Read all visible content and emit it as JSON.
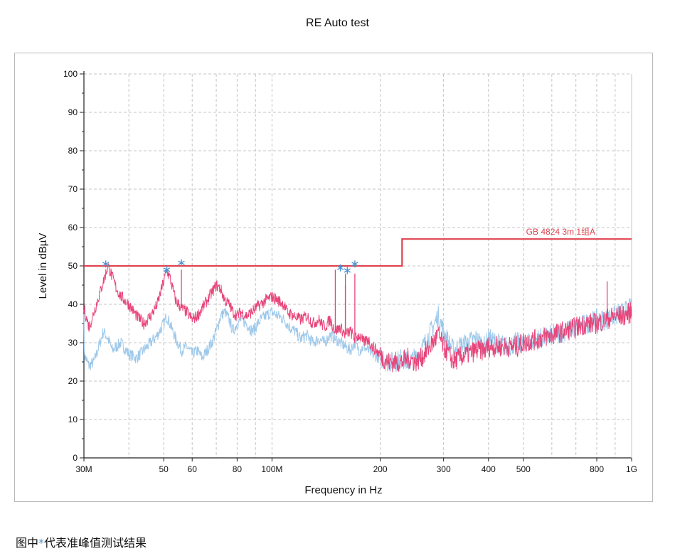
{
  "chart_data": {
    "type": "line",
    "title": "RE Auto test",
    "xlabel": "Frequency in Hz",
    "ylabel": "Level in dBµV",
    "x_scale": "log",
    "xlim": [
      30000000,
      1000000000
    ],
    "ylim": [
      0,
      100
    ],
    "grid": true,
    "x_ticks": [
      {
        "value": 30000000,
        "label": "30M"
      },
      {
        "value": 50000000,
        "label": "50"
      },
      {
        "value": 60000000,
        "label": "60"
      },
      {
        "value": 80000000,
        "label": "80"
      },
      {
        "value": 100000000,
        "label": "100M"
      },
      {
        "value": 200000000,
        "label": "200"
      },
      {
        "value": 300000000,
        "label": "300"
      },
      {
        "value": 400000000,
        "label": "400"
      },
      {
        "value": 500000000,
        "label": "500"
      },
      {
        "value": 800000000,
        "label": "800"
      },
      {
        "value": 1000000000,
        "label": "1G"
      }
    ],
    "y_ticks": [
      0,
      10,
      20,
      30,
      40,
      50,
      60,
      70,
      80,
      90,
      100
    ],
    "limit_line": {
      "label": "GB 4824 3m 1组A",
      "color": "#e0434f",
      "points": [
        [
          30000000,
          50
        ],
        [
          230000000,
          50
        ],
        [
          230000000,
          57
        ],
        [
          1000000000,
          57
        ]
      ]
    },
    "series": [
      {
        "color": "#9dc8ea",
        "points": [
          [
            30,
            27
          ],
          [
            31,
            24
          ],
          [
            32,
            25
          ],
          [
            33,
            29
          ],
          [
            34,
            33
          ],
          [
            35,
            31
          ],
          [
            36,
            28
          ],
          [
            38,
            30
          ],
          [
            40,
            27
          ],
          [
            42,
            26
          ],
          [
            44,
            28
          ],
          [
            46,
            30
          ],
          [
            48,
            32
          ],
          [
            50,
            35
          ],
          [
            51,
            37
          ],
          [
            52,
            35
          ],
          [
            54,
            31
          ],
          [
            56,
            28
          ],
          [
            58,
            29
          ],
          [
            60,
            27
          ],
          [
            62,
            28
          ],
          [
            64,
            26
          ],
          [
            66,
            28
          ],
          [
            68,
            30
          ],
          [
            70,
            33
          ],
          [
            72,
            37
          ],
          [
            74,
            38
          ],
          [
            76,
            36
          ],
          [
            78,
            33
          ],
          [
            80,
            35
          ],
          [
            82,
            36
          ],
          [
            85,
            35
          ],
          [
            88,
            33
          ],
          [
            90,
            34
          ],
          [
            93,
            36
          ],
          [
            96,
            37
          ],
          [
            100,
            38
          ],
          [
            104,
            37
          ],
          [
            108,
            36
          ],
          [
            112,
            34
          ],
          [
            116,
            33
          ],
          [
            120,
            31
          ],
          [
            125,
            32
          ],
          [
            130,
            30
          ],
          [
            135,
            31
          ],
          [
            140,
            30
          ],
          [
            145,
            32
          ],
          [
            150,
            31
          ],
          [
            155,
            30
          ],
          [
            160,
            29
          ],
          [
            165,
            28
          ],
          [
            170,
            30
          ],
          [
            175,
            28
          ],
          [
            180,
            29
          ],
          [
            185,
            28
          ],
          [
            190,
            27
          ],
          [
            200,
            26
          ],
          [
            210,
            25
          ],
          [
            220,
            25
          ],
          [
            230,
            26
          ],
          [
            240,
            25
          ],
          [
            250,
            26
          ],
          [
            260,
            28
          ],
          [
            270,
            31
          ],
          [
            280,
            34
          ],
          [
            290,
            37
          ],
          [
            300,
            33
          ],
          [
            310,
            30
          ],
          [
            320,
            28
          ],
          [
            330,
            29
          ],
          [
            350,
            30
          ],
          [
            370,
            31
          ],
          [
            390,
            29
          ],
          [
            400,
            31
          ],
          [
            420,
            30
          ],
          [
            450,
            29
          ],
          [
            480,
            30
          ],
          [
            500,
            30
          ],
          [
            550,
            31
          ],
          [
            600,
            32
          ],
          [
            650,
            33
          ],
          [
            700,
            34
          ],
          [
            750,
            35
          ],
          [
            800,
            36
          ],
          [
            850,
            36
          ],
          [
            900,
            37
          ],
          [
            950,
            38
          ],
          [
            1000,
            39
          ]
        ]
      },
      {
        "color": "#e8457a",
        "points": [
          [
            30,
            39
          ],
          [
            31,
            34
          ],
          [
            32,
            38
          ],
          [
            33,
            42
          ],
          [
            34,
            46
          ],
          [
            35,
            50
          ],
          [
            36,
            47
          ],
          [
            37,
            44
          ],
          [
            38,
            42
          ],
          [
            39,
            41
          ],
          [
            40,
            40
          ],
          [
            42,
            37
          ],
          [
            44,
            35
          ],
          [
            45,
            36
          ],
          [
            46,
            37
          ],
          [
            48,
            40
          ],
          [
            50,
            46
          ],
          [
            51,
            49
          ],
          [
            52,
            47
          ],
          [
            53,
            44
          ],
          [
            54,
            41
          ],
          [
            56,
            39
          ],
          [
            58,
            38
          ],
          [
            60,
            36
          ],
          [
            62,
            37
          ],
          [
            64,
            39
          ],
          [
            66,
            41
          ],
          [
            68,
            43
          ],
          [
            70,
            45
          ],
          [
            72,
            44
          ],
          [
            74,
            41
          ],
          [
            76,
            40
          ],
          [
            78,
            38
          ],
          [
            80,
            37
          ],
          [
            82,
            38
          ],
          [
            85,
            37
          ],
          [
            88,
            38
          ],
          [
            90,
            39
          ],
          [
            93,
            40
          ],
          [
            96,
            41
          ],
          [
            100,
            42
          ],
          [
            104,
            41
          ],
          [
            108,
            40
          ],
          [
            110,
            38
          ],
          [
            115,
            37
          ],
          [
            120,
            36
          ],
          [
            125,
            37
          ],
          [
            130,
            35
          ],
          [
            135,
            36
          ],
          [
            140,
            34
          ],
          [
            145,
            36
          ],
          [
            150,
            33
          ],
          [
            155,
            34
          ],
          [
            160,
            32
          ],
          [
            165,
            33
          ],
          [
            170,
            31
          ],
          [
            175,
            32
          ],
          [
            180,
            30
          ],
          [
            185,
            31
          ],
          [
            190,
            29
          ],
          [
            200,
            27
          ],
          [
            210,
            25
          ],
          [
            220,
            25
          ],
          [
            230,
            25
          ],
          [
            240,
            26
          ],
          [
            250,
            25
          ],
          [
            260,
            26
          ],
          [
            270,
            28
          ],
          [
            280,
            30
          ],
          [
            290,
            32
          ],
          [
            300,
            29
          ],
          [
            310,
            27
          ],
          [
            320,
            25
          ],
          [
            330,
            26
          ],
          [
            350,
            27
          ],
          [
            370,
            28
          ],
          [
            390,
            28
          ],
          [
            400,
            29
          ],
          [
            420,
            29
          ],
          [
            450,
            29
          ],
          [
            480,
            29
          ],
          [
            500,
            30
          ],
          [
            550,
            31
          ],
          [
            600,
            32
          ],
          [
            650,
            33
          ],
          [
            700,
            34
          ],
          [
            750,
            35
          ],
          [
            800,
            35
          ],
          [
            850,
            36
          ],
          [
            900,
            37
          ],
          [
            950,
            37
          ],
          [
            1000,
            38
          ]
        ]
      }
    ],
    "spikes": [
      {
        "x": 56,
        "y": 49
      },
      {
        "x": 150,
        "y": 49
      },
      {
        "x": 160,
        "y": 45
      },
      {
        "x": 170,
        "y": 48
      },
      {
        "x": 160,
        "y": 48
      },
      {
        "x": 855,
        "y": 46
      }
    ],
    "peak_markers": {
      "color": "#4f93d0",
      "points": [
        [
          34.5,
          50.5
        ],
        [
          51,
          49
        ],
        [
          56,
          50.8
        ],
        [
          155,
          49.5
        ],
        [
          162,
          48.8
        ],
        [
          170,
          50.5
        ]
      ]
    }
  },
  "caption": {
    "before": "图中",
    "symbol": "*",
    "after": "代表准峰值测试结果"
  }
}
